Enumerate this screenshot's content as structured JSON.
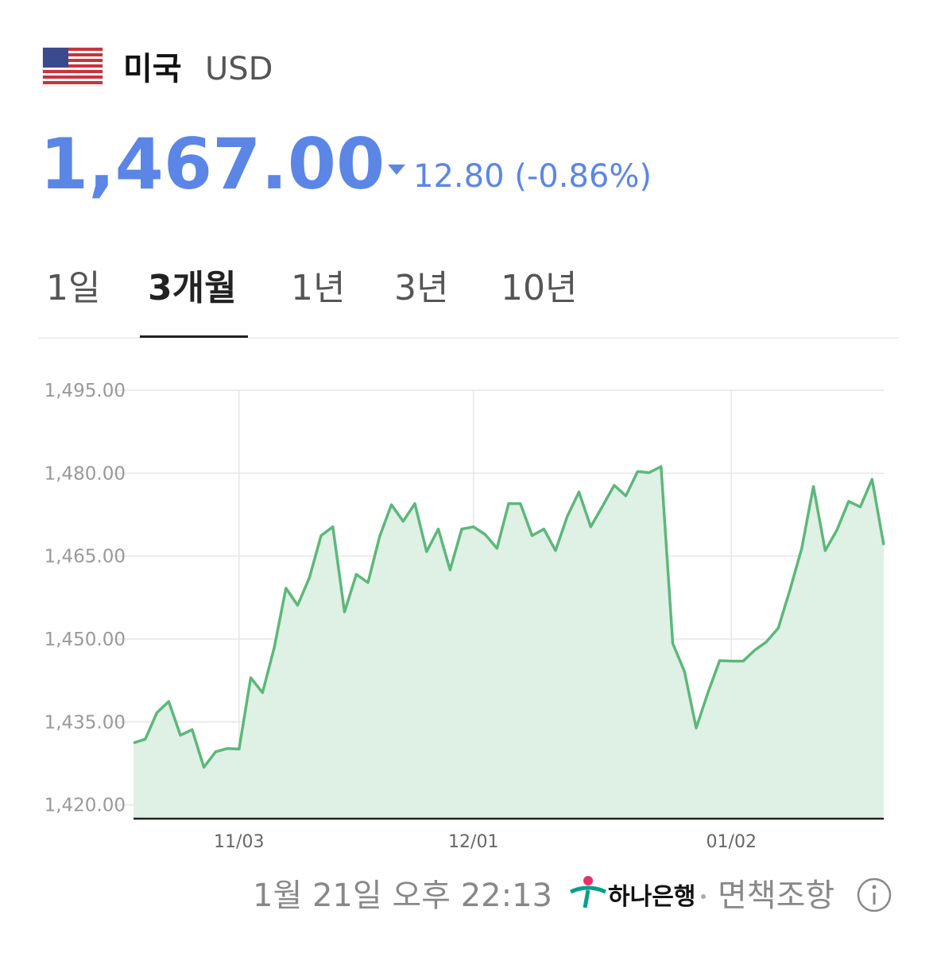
{
  "header": {
    "country": "미국",
    "currency": "USD",
    "price": "1,467.00",
    "change": "12.80 (-0.86%)"
  },
  "tabs": {
    "items": [
      "1일",
      "3개월",
      "1년",
      "3년",
      "10년"
    ],
    "selected": 1
  },
  "chart_data": {
    "type": "line",
    "categories": [
      null,
      null,
      null,
      null,
      null,
      null,
      null,
      null,
      null,
      "11/03",
      null,
      null,
      null,
      null,
      null,
      null,
      null,
      null,
      null,
      null,
      null,
      null,
      null,
      null,
      null,
      null,
      null,
      null,
      null,
      "12/01",
      null,
      null,
      null,
      null,
      null,
      null,
      null,
      null,
      null,
      null,
      null,
      null,
      null,
      null,
      null,
      null,
      null,
      null,
      null,
      null,
      null,
      "01/02",
      null,
      null,
      null,
      null,
      null,
      null,
      null,
      null,
      null,
      null,
      null,
      null,
      null
    ],
    "values": [
      1431.2,
      1431.9,
      1436.7,
      1438.7,
      1432.6,
      1433.6,
      1426.8,
      1429.6,
      1430.2,
      1430.1,
      1443.0,
      1440.3,
      1448.4,
      1459.2,
      1456.1,
      1461.1,
      1468.7,
      1470.3,
      1454.9,
      1461.7,
      1460.2,
      1468.6,
      1474.3,
      1471.3,
      1474.5,
      1465.8,
      1469.9,
      1462.5,
      1469.9,
      1470.3,
      1468.9,
      1466.4,
      1474.5,
      1474.5,
      1468.7,
      1469.9,
      1466.0,
      1472.2,
      1476.6,
      1470.3,
      1474.0,
      1477.8,
      1475.9,
      1480.3,
      1480.1,
      1481.2,
      1449.2,
      1444.1,
      1433.9,
      1440.3,
      1446.1,
      1446.0,
      1446.0,
      1448.0,
      1449.5,
      1452.0,
      1458.9,
      1466.4,
      1477.6,
      1466.0,
      1469.7,
      1474.9,
      1473.9,
      1478.9,
      1467.0
    ],
    "color": "#5cb87a",
    "fill": "#dff0e5",
    "ylim": [
      1417.5,
      1495
    ],
    "yticks": [
      {
        "value": 1420,
        "label": "1,420.00"
      },
      {
        "value": 1435,
        "label": "1,435.00"
      },
      {
        "value": 1450,
        "label": "1,450.00"
      },
      {
        "value": 1465,
        "label": "1,465.00"
      },
      {
        "value": 1480,
        "label": "1,480.00"
      },
      {
        "value": 1495,
        "label": "1,495.00"
      }
    ],
    "grid": true
  },
  "footer": {
    "timestamp": "1월 21일 오후 22:13",
    "bank": "하나은행",
    "disclaimer": "면책조항"
  }
}
